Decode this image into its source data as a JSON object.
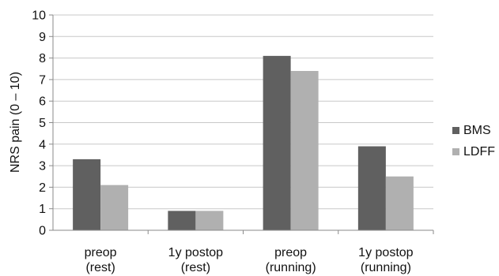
{
  "chart_data": {
    "type": "bar",
    "title": "",
    "xlabel": "",
    "ylabel": "NRS pain (0 – 10)",
    "ylim": [
      0,
      10
    ],
    "yticks": [
      0,
      1,
      2,
      3,
      4,
      5,
      6,
      7,
      8,
      9,
      10
    ],
    "grid": true,
    "legend_position": "right",
    "categories": [
      [
        "preop",
        "(rest)"
      ],
      [
        "1y postop",
        "(rest)"
      ],
      [
        "preop",
        "(running)"
      ],
      [
        "1y postop",
        "(running)"
      ]
    ],
    "series": [
      {
        "name": "BMS",
        "color": "#606060",
        "values": [
          3.3,
          0.9,
          8.1,
          3.9
        ]
      },
      {
        "name": "LDFF",
        "color": "#b0b0b0",
        "values": [
          2.1,
          0.9,
          7.4,
          2.5
        ]
      }
    ]
  }
}
